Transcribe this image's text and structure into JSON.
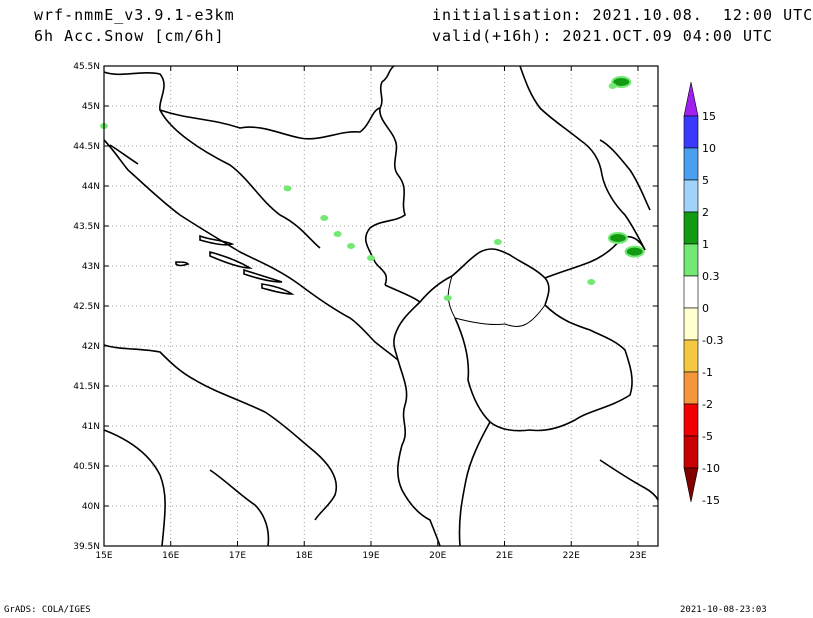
{
  "header": {
    "model": "wrf-nmmE_v3.9.1-e3km",
    "variable": "6h Acc.Snow [cm/6h]",
    "init": "initialisation: 2021.10.08.  12:00 UTC",
    "valid": "valid(+16h): 2021.OCT.09 04:00 UTC"
  },
  "footer": {
    "left": "GrADS: COLA/IGES",
    "right": "2021-10-08-23:03"
  },
  "axes": {
    "x_ticks": [
      "15E",
      "16E",
      "17E",
      "18E",
      "19E",
      "20E",
      "21E",
      "22E",
      "23E"
    ],
    "y_ticks": [
      "45.5N",
      "45N",
      "44.5N",
      "44N",
      "43.5N",
      "43N",
      "42.5N",
      "42N",
      "41.5N",
      "41N",
      "40.5N",
      "40N",
      "39.5N"
    ],
    "lon_range": [
      15,
      23.3
    ],
    "lat_range": [
      39.5,
      45.5
    ]
  },
  "colorbar": {
    "labels": [
      "15",
      "10",
      "5",
      "2",
      "1",
      "0.3",
      "0",
      "-0.3",
      "-1",
      "-2",
      "-5",
      "-10",
      "-15"
    ],
    "colors": [
      "#a020f0",
      "#3a3aff",
      "#4aa0ee",
      "#a0d2fa",
      "#129b12",
      "#74e874",
      "#ffffff",
      "#ffffd0",
      "#f5c842",
      "#f5963c",
      "#f00000",
      "#c80000",
      "#800000"
    ]
  },
  "chart_data": {
    "type": "map",
    "title": "6h Acc.Snow [cm/6h]",
    "grid": true,
    "snow_areas": [
      {
        "lon": 22.75,
        "lat": 45.3,
        "class": "1-2"
      },
      {
        "lon": 22.62,
        "lat": 45.25,
        "class": "0.3-1"
      },
      {
        "lon": 22.7,
        "lat": 43.35,
        "class": "1-2"
      },
      {
        "lon": 22.95,
        "lat": 43.18,
        "class": "1-2"
      },
      {
        "lon": 22.3,
        "lat": 42.8,
        "class": "0.3-1"
      },
      {
        "lon": 18.5,
        "lat": 43.4,
        "class": "0.3-1"
      },
      {
        "lon": 18.7,
        "lat": 43.25,
        "class": "0.3-1"
      },
      {
        "lon": 19.0,
        "lat": 43.1,
        "class": "0.3-1"
      },
      {
        "lon": 18.3,
        "lat": 43.6,
        "class": "0.3-1"
      },
      {
        "lon": 17.75,
        "lat": 43.97,
        "class": "0.3-1"
      },
      {
        "lon": 15.0,
        "lat": 44.75,
        "class": "0.3-1"
      },
      {
        "lon": 20.9,
        "lat": 43.3,
        "class": "0.3-1"
      },
      {
        "lon": 20.15,
        "lat": 42.6,
        "class": "0.3-1"
      }
    ]
  }
}
